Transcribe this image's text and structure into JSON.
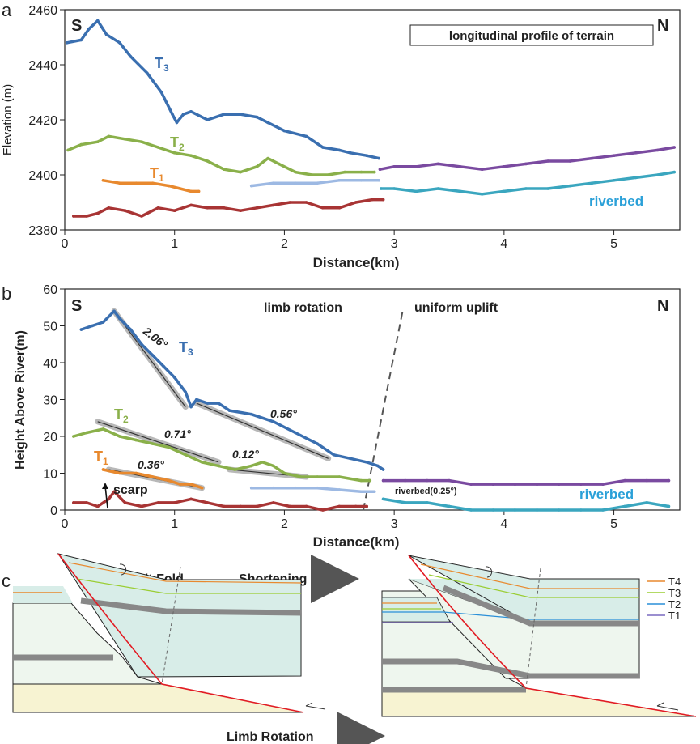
{
  "colors": {
    "t3": "#3a6fb0",
    "t2": "#8ab04a",
    "t1": "#e8892e",
    "t0": "#a83434",
    "t1_light": "#9db9e3",
    "purple": "#7a4aa0",
    "cyan": "#3aa6bf",
    "riverbed_text": "#2aa0d8",
    "fault": "#e21c24",
    "gray": "#808080",
    "layer_gray": "#888888",
    "teal_fill": "#d0ece9",
    "light_fill": "#eef6ee",
    "sand_fill": "#f7f3d2",
    "arrow_gray": "#555555"
  },
  "panel_a": {
    "letter": "a",
    "title": "longitudinal profile of terrain",
    "south": "S",
    "north": "N",
    "ylabel": "Elevation (m)",
    "xlabel": "Distance(km)",
    "label_t3": "T",
    "sub_t3": "3",
    "label_t2": "T",
    "sub_t2": "2",
    "label_t1": "T",
    "sub_t1": "1",
    "label_riverbed": "riverbed"
  },
  "panel_b": {
    "letter": "b",
    "south": "S",
    "north": "N",
    "ylabel": "Height Above River(m)",
    "xlabel": "Distance(km)",
    "limb_text": "limb rotation",
    "uplift_text": "uniform uplift",
    "label_t3": "T",
    "sub_t3": "3",
    "label_t2": "T",
    "sub_t2": "2",
    "label_t1": "T",
    "sub_t1": "1",
    "angle_t3a": "2.06°",
    "angle_t3b": "0.56°",
    "angle_t2a": "0.71°",
    "angle_t2b": "0.12°",
    "angle_t1": "0.36°",
    "scarp": "scarp",
    "riverbed_small": "riverbed(0.25°)",
    "label_riverbed": "riverbed"
  },
  "panel_c": {
    "letter": "c",
    "title_left": "Listric Fault Fold",
    "title_shortening": "Shortening",
    "title_rotation": "Limb Rotation",
    "legend": [
      {
        "label": "T4",
        "color": "#e8892e"
      },
      {
        "label": "T3",
        "color": "#9acd32"
      },
      {
        "label": "T2",
        "color": "#2a8fd8"
      },
      {
        "label": "T1",
        "color": "#7a6ac0"
      }
    ]
  },
  "chart_data": [
    {
      "type": "line",
      "title": "longitudinal profile of terrain",
      "xlabel": "Distance(km)",
      "ylabel": "Elevation (m)",
      "xlim": [
        0,
        5.6
      ],
      "ylim": [
        2380,
        2460
      ],
      "x_ticks": [
        0,
        1,
        2,
        3,
        4,
        5
      ],
      "y_ticks": [
        2380,
        2400,
        2420,
        2440,
        2460
      ],
      "series": [
        {
          "name": "T3",
          "color_key": "t3",
          "points": [
            [
              0.02,
              2448
            ],
            [
              0.15,
              2449
            ],
            [
              0.22,
              2453
            ],
            [
              0.3,
              2456
            ],
            [
              0.38,
              2451
            ],
            [
              0.5,
              2448
            ],
            [
              0.6,
              2443
            ],
            [
              0.75,
              2437
            ],
            [
              0.88,
              2430
            ],
            [
              0.98,
              2422
            ],
            [
              1.02,
              2419
            ],
            [
              1.08,
              2422
            ],
            [
              1.15,
              2423
            ],
            [
              1.3,
              2420
            ],
            [
              1.45,
              2422
            ],
            [
              1.6,
              2422
            ],
            [
              1.75,
              2421
            ],
            [
              1.85,
              2419
            ],
            [
              2.0,
              2416
            ],
            [
              2.2,
              2414
            ],
            [
              2.35,
              2410
            ],
            [
              2.5,
              2409
            ],
            [
              2.6,
              2408
            ],
            [
              2.75,
              2407
            ],
            [
              2.86,
              2406
            ]
          ]
        },
        {
          "name": "T2",
          "color_key": "t2",
          "points": [
            [
              0.03,
              2409
            ],
            [
              0.15,
              2411
            ],
            [
              0.3,
              2412
            ],
            [
              0.4,
              2414
            ],
            [
              0.55,
              2413
            ],
            [
              0.7,
              2412
            ],
            [
              0.85,
              2410
            ],
            [
              1.0,
              2408
            ],
            [
              1.15,
              2407
            ],
            [
              1.3,
              2405
            ],
            [
              1.45,
              2402
            ],
            [
              1.6,
              2401
            ],
            [
              1.75,
              2403
            ],
            [
              1.85,
              2406
            ],
            [
              1.95,
              2404
            ],
            [
              2.1,
              2401
            ],
            [
              2.25,
              2400
            ],
            [
              2.4,
              2400
            ],
            [
              2.55,
              2401
            ],
            [
              2.7,
              2401
            ],
            [
              2.82,
              2401
            ]
          ]
        },
        {
          "name": "T1",
          "color_key": "t1",
          "points": [
            [
              0.35,
              2398
            ],
            [
              0.5,
              2397
            ],
            [
              0.65,
              2397
            ],
            [
              0.8,
              2397
            ],
            [
              0.95,
              2396
            ],
            [
              1.05,
              2395
            ],
            [
              1.15,
              2394
            ],
            [
              1.22,
              2394
            ]
          ]
        },
        {
          "name": "",
          "color_key": "t1_light",
          "points": [
            [
              1.7,
              2396
            ],
            [
              1.9,
              2397
            ],
            [
              2.1,
              2397
            ],
            [
              2.3,
              2397
            ],
            [
              2.5,
              2398
            ],
            [
              2.7,
              2398
            ],
            [
              2.86,
              2398
            ]
          ]
        },
        {
          "name": "",
          "color_key": "purple",
          "points": [
            [
              2.87,
              2402
            ],
            [
              3.0,
              2403
            ],
            [
              3.2,
              2403
            ],
            [
              3.4,
              2404
            ],
            [
              3.6,
              2403
            ],
            [
              3.8,
              2402
            ],
            [
              4.0,
              2403
            ],
            [
              4.2,
              2404
            ],
            [
              4.4,
              2405
            ],
            [
              4.6,
              2405
            ],
            [
              4.8,
              2406
            ],
            [
              5.0,
              2407
            ],
            [
              5.2,
              2408
            ],
            [
              5.4,
              2409
            ],
            [
              5.55,
              2410
            ]
          ]
        },
        {
          "name": "",
          "color_key": "t0",
          "points": [
            [
              0.08,
              2385
            ],
            [
              0.2,
              2385
            ],
            [
              0.3,
              2386
            ],
            [
              0.4,
              2388
            ],
            [
              0.55,
              2387
            ],
            [
              0.7,
              2385
            ],
            [
              0.85,
              2388
            ],
            [
              1.0,
              2387
            ],
            [
              1.15,
              2389
            ],
            [
              1.3,
              2388
            ],
            [
              1.45,
              2388
            ],
            [
              1.6,
              2387
            ],
            [
              1.75,
              2388
            ],
            [
              1.9,
              2389
            ],
            [
              2.05,
              2390
            ],
            [
              2.2,
              2390
            ],
            [
              2.35,
              2388
            ],
            [
              2.5,
              2388
            ],
            [
              2.65,
              2390
            ],
            [
              2.8,
              2391
            ],
            [
              2.9,
              2391
            ]
          ]
        },
        {
          "name": "",
          "color_key": "cyan",
          "points": [
            [
              2.88,
              2395
            ],
            [
              3.0,
              2395
            ],
            [
              3.2,
              2394
            ],
            [
              3.4,
              2395
            ],
            [
              3.6,
              2394
            ],
            [
              3.8,
              2393
            ],
            [
              4.0,
              2394
            ],
            [
              4.2,
              2395
            ],
            [
              4.4,
              2395
            ],
            [
              4.6,
              2396
            ],
            [
              4.8,
              2397
            ],
            [
              5.0,
              2398
            ],
            [
              5.2,
              2399
            ],
            [
              5.4,
              2400
            ],
            [
              5.55,
              2401
            ]
          ]
        }
      ],
      "annotations": [
        "T3",
        "T2",
        "T1",
        "riverbed",
        "S",
        "N"
      ]
    },
    {
      "type": "line",
      "xlabel": "Distance(km)",
      "ylabel": "Height Above River(m)",
      "xlim": [
        0,
        5.6
      ],
      "ylim": [
        0,
        60
      ],
      "x_ticks": [
        0,
        1,
        2,
        3,
        4,
        5
      ],
      "y_ticks": [
        0,
        10,
        20,
        30,
        40,
        50,
        60
      ],
      "series": [
        {
          "name": "T3",
          "color_key": "t3",
          "points": [
            [
              0.15,
              49
            ],
            [
              0.25,
              50
            ],
            [
              0.35,
              51
            ],
            [
              0.45,
              54
            ],
            [
              0.5,
              52
            ],
            [
              0.6,
              49
            ],
            [
              0.7,
              45
            ],
            [
              0.8,
              42
            ],
            [
              0.9,
              39
            ],
            [
              1.0,
              36
            ],
            [
              1.1,
              32
            ],
            [
              1.15,
              28
            ],
            [
              1.2,
              30
            ],
            [
              1.3,
              29
            ],
            [
              1.4,
              29
            ],
            [
              1.5,
              27
            ],
            [
              1.7,
              26
            ],
            [
              1.9,
              24
            ],
            [
              2.1,
              21
            ],
            [
              2.3,
              18
            ],
            [
              2.45,
              15
            ],
            [
              2.6,
              14
            ],
            [
              2.75,
              13
            ],
            [
              2.85,
              12
            ],
            [
              2.9,
              11
            ]
          ]
        },
        {
          "name": "T2",
          "color_key": "t2",
          "points": [
            [
              0.08,
              20
            ],
            [
              0.2,
              21
            ],
            [
              0.35,
              22
            ],
            [
              0.5,
              20
            ],
            [
              0.65,
              19
            ],
            [
              0.8,
              18
            ],
            [
              0.95,
              17
            ],
            [
              1.1,
              15
            ],
            [
              1.25,
              13
            ],
            [
              1.4,
              12
            ],
            [
              1.55,
              11
            ],
            [
              1.7,
              12
            ],
            [
              1.8,
              13
            ],
            [
              1.9,
              12
            ],
            [
              2.0,
              10
            ],
            [
              2.15,
              9
            ],
            [
              2.3,
              9
            ],
            [
              2.5,
              9
            ],
            [
              2.7,
              8
            ],
            [
              2.78,
              8
            ]
          ]
        },
        {
          "name": "T1",
          "color_key": "t1",
          "points": [
            [
              0.35,
              11
            ],
            [
              0.5,
              10
            ],
            [
              0.65,
              10
            ],
            [
              0.8,
              9
            ],
            [
              0.95,
              8
            ],
            [
              1.05,
              7
            ],
            [
              1.15,
              7
            ],
            [
              1.25,
              6
            ]
          ]
        },
        {
          "name": "",
          "color_key": "t1_light",
          "points": [
            [
              1.7,
              6
            ],
            [
              1.9,
              6
            ],
            [
              2.1,
              6
            ],
            [
              2.3,
              6
            ],
            [
              2.5,
              5.5
            ],
            [
              2.7,
              5
            ],
            [
              2.82,
              5
            ]
          ]
        },
        {
          "name": "",
          "color_key": "purple",
          "points": [
            [
              2.9,
              8
            ],
            [
              3.1,
              8
            ],
            [
              3.3,
              8
            ],
            [
              3.5,
              8
            ],
            [
              3.7,
              7
            ],
            [
              3.9,
              7
            ],
            [
              4.1,
              7
            ],
            [
              4.3,
              7
            ],
            [
              4.5,
              7
            ],
            [
              4.7,
              7
            ],
            [
              4.9,
              7
            ],
            [
              5.1,
              8
            ],
            [
              5.3,
              8
            ],
            [
              5.5,
              8
            ]
          ]
        },
        {
          "name": "",
          "color_key": "t0",
          "points": [
            [
              0.08,
              2
            ],
            [
              0.2,
              2
            ],
            [
              0.3,
              1
            ],
            [
              0.4,
              3
            ],
            [
              0.45,
              5
            ],
            [
              0.55,
              2
            ],
            [
              0.7,
              1
            ],
            [
              0.85,
              2
            ],
            [
              1.0,
              2
            ],
            [
              1.15,
              3
            ],
            [
              1.3,
              2
            ],
            [
              1.45,
              1
            ],
            [
              1.6,
              1
            ],
            [
              1.75,
              1
            ],
            [
              1.9,
              2
            ],
            [
              2.05,
              1
            ],
            [
              2.2,
              1
            ],
            [
              2.35,
              0
            ],
            [
              2.5,
              1
            ],
            [
              2.65,
              1
            ],
            [
              2.75,
              1
            ]
          ]
        },
        {
          "name": "",
          "color_key": "cyan",
          "points": [
            [
              2.9,
              3
            ],
            [
              3.1,
              2
            ],
            [
              3.3,
              2
            ],
            [
              3.5,
              1
            ],
            [
              3.7,
              0
            ],
            [
              3.9,
              0
            ],
            [
              4.1,
              0
            ],
            [
              4.3,
              0
            ],
            [
              4.5,
              0
            ],
            [
              4.7,
              0
            ],
            [
              4.9,
              0
            ],
            [
              5.1,
              1
            ],
            [
              5.3,
              2
            ],
            [
              5.5,
              1
            ]
          ]
        }
      ],
      "fit_lines": [
        {
          "label": "2.06°",
          "from": [
            0.45,
            54
          ],
          "to": [
            1.1,
            28
          ]
        },
        {
          "label": "0.56°",
          "from": [
            1.2,
            29
          ],
          "to": [
            2.4,
            14
          ]
        },
        {
          "label": "0.71°",
          "from": [
            0.3,
            24
          ],
          "to": [
            1.4,
            13
          ]
        },
        {
          "label": "0.12°",
          "from": [
            1.5,
            11
          ],
          "to": [
            2.2,
            9
          ]
        },
        {
          "label": "0.36°",
          "from": [
            0.4,
            11
          ],
          "to": [
            1.25,
            6
          ]
        }
      ],
      "annotations": [
        "limb rotation",
        "uniform uplift",
        "scarp",
        "riverbed(0.25°)",
        "riverbed",
        "S",
        "N"
      ]
    }
  ]
}
